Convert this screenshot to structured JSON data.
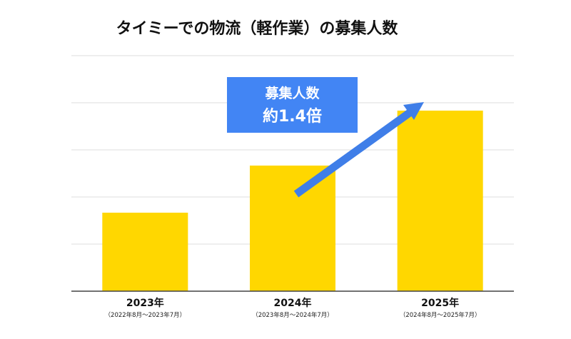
{
  "chart_data": {
    "type": "bar",
    "title": "タイミーでの物流（軽作業）の募集人数",
    "categories": [
      "2023年",
      "2024年",
      "2025年"
    ],
    "category_sublabels": [
      "（2022年8月～2023年7月）",
      "（2023年8月～2024年7月）",
      "（2024年8月～2025年7月）"
    ],
    "values": [
      1.0,
      1.6,
      2.3
    ],
    "ylim": [
      0,
      3.0
    ],
    "grid": true,
    "bar_color": "#FFD700",
    "annotation": {
      "line1": "募集人数",
      "line2": "約1.4倍",
      "box_color": "#4285F4",
      "arrow_color": "#3F7EE8"
    }
  }
}
